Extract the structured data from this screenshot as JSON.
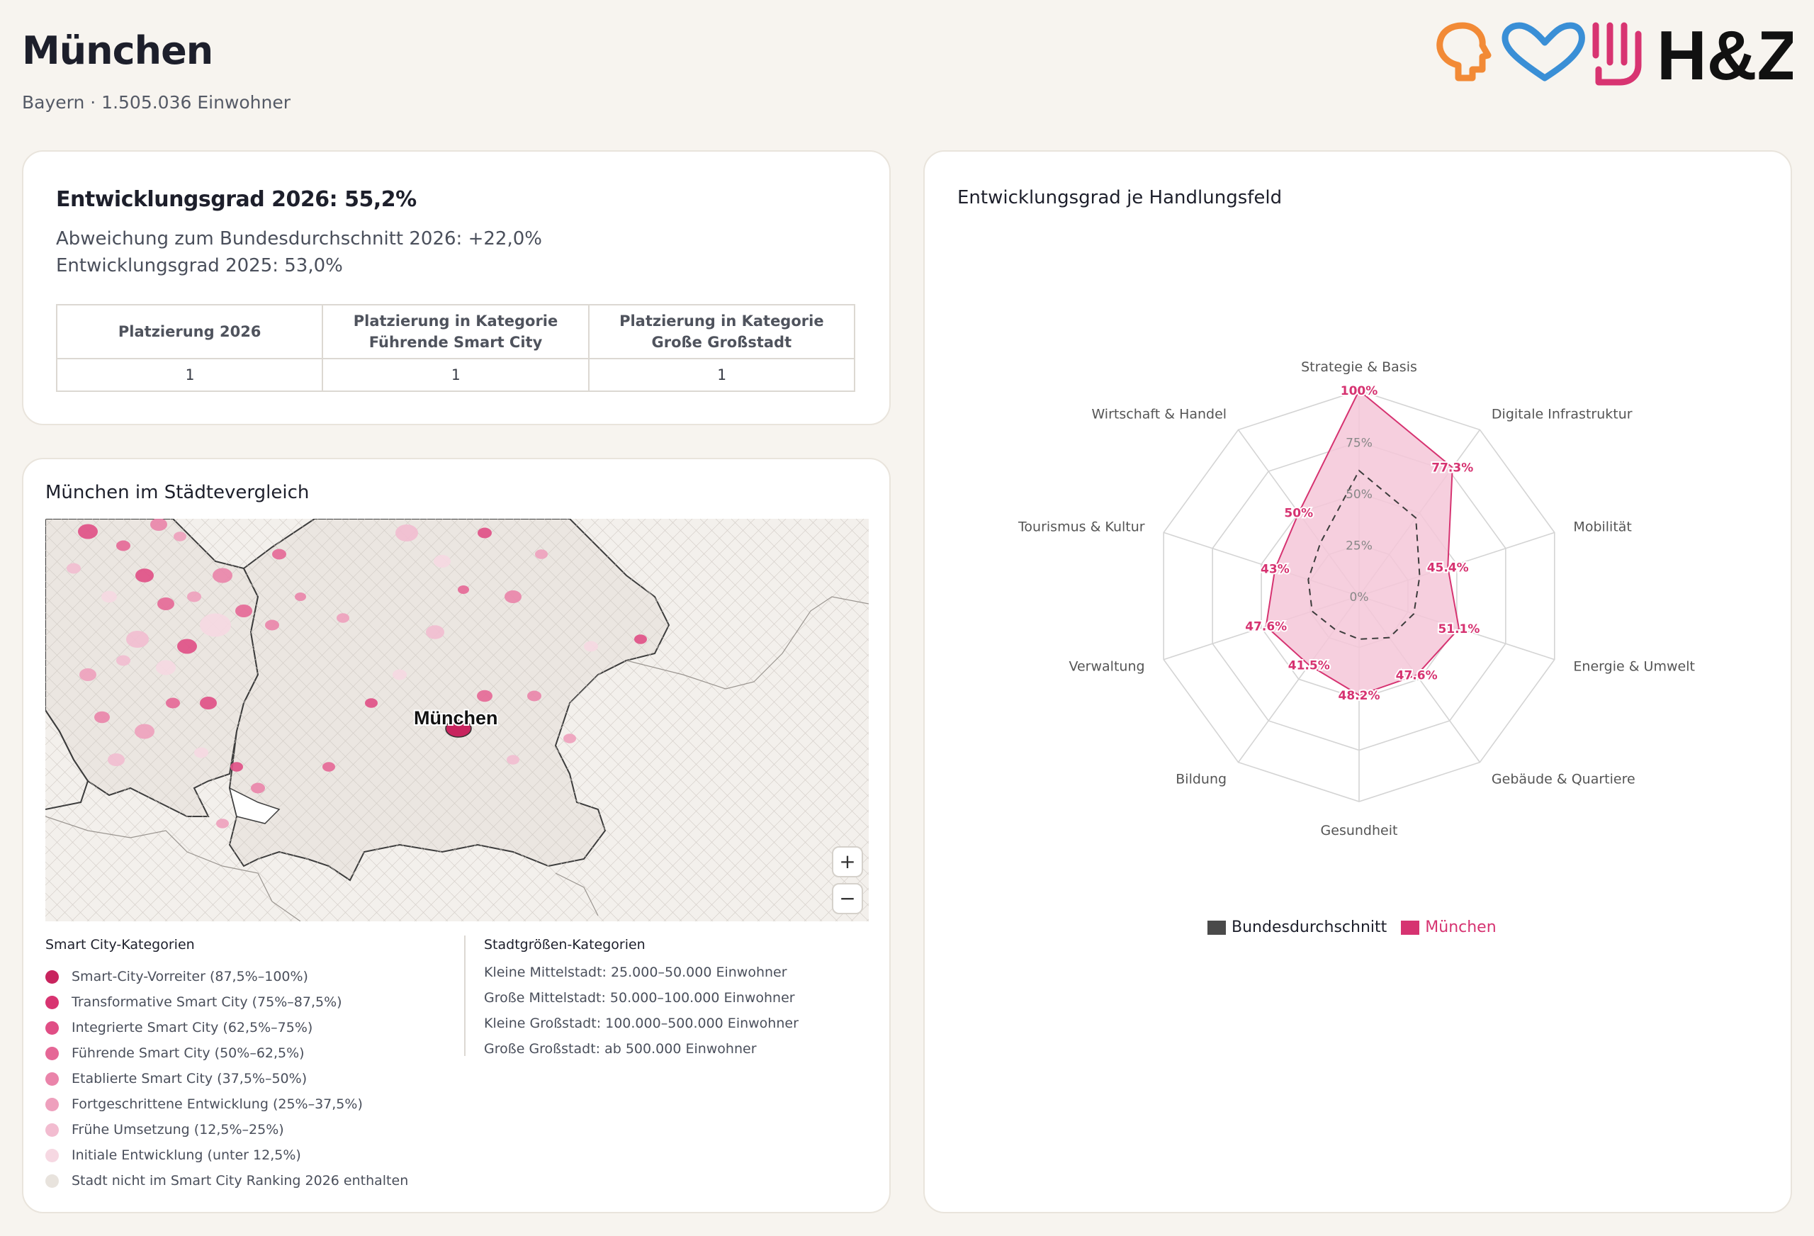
{
  "header": {
    "city": "München",
    "subtitle": "Bayern · 1.505.036 Einwohner",
    "logo_text": "H&Z"
  },
  "summary": {
    "grade": "Entwicklungsgrad 2026: 55,2%",
    "deviation": "Abweichung zum Bundesdurchschnitt 2026: +22,0%",
    "grade_prev": "Entwicklungsgrad 2025: 53,0%",
    "table": {
      "headers": [
        "Platzierung 2026",
        "Platzierung in Kategorie Führende Smart City",
        "Platzierung in Kategorie Große Großstadt"
      ],
      "values": [
        "1",
        "1",
        "1"
      ]
    }
  },
  "map": {
    "title": "München im Städtevergleich",
    "city_label": "München",
    "zoom_in": "+",
    "zoom_out": "−",
    "legend_categories_title": "Smart City-Kategorien",
    "legend_categories": [
      {
        "label": "Smart-City-Vorreiter (87,5%–100%)",
        "color": "#c8245e"
      },
      {
        "label": "Transformative Smart City (75%–87,5%)",
        "color": "#d83471"
      },
      {
        "label": "Integrierte Smart City (62,5%–75%)",
        "color": "#e04e85"
      },
      {
        "label": "Führende Smart City (50%–62,5%)",
        "color": "#e56796"
      },
      {
        "label": "Etablierte Smart City (37,5%–50%)",
        "color": "#ea84aa"
      },
      {
        "label": "Fortgeschrittene Entwicklung (25%–37,5%)",
        "color": "#eea0bd"
      },
      {
        "label": "Frühe Umsetzung (12,5%–25%)",
        "color": "#f2bcd0"
      },
      {
        "label": "Initiale Entwicklung (unter 12,5%)",
        "color": "#f6d8e2"
      },
      {
        "label": "Stadt nicht im Smart City Ranking 2026 enthalten",
        "color": "#e8e3dd"
      }
    ],
    "legend_size_title": "Stadtgrößen-Kategorien",
    "legend_sizes": [
      "Kleine Mittelstadt: 25.000–50.000 Einwohner",
      "Große Mittelstadt: 50.000–100.000 Einwohner",
      "Kleine Großstadt: 100.000–500.000 Einwohner",
      "Große Großstadt: ab 500.000 Einwohner"
    ]
  },
  "radar": {
    "title": "Entwicklungsgrad je Handlungsfeld",
    "ring_labels": [
      "0%",
      "25%",
      "50%",
      "75%",
      "100%"
    ],
    "legend": [
      {
        "label": "Bundesdurchschnitt",
        "color": "#4a4a4a"
      },
      {
        "label": "München",
        "color": "#d63371"
      }
    ],
    "colors": {
      "city": "#d63371",
      "city_fill": "#f4c7d8",
      "avg": "#3c3c3c",
      "grid": "#d4d4d4"
    }
  },
  "chart_data": {
    "type": "radar",
    "categories": [
      "Strategie & Basis",
      "Digitale Infrastruktur",
      "Mobilität",
      "Energie & Umwelt",
      "Gebäude & Quartiere",
      "Gesundheit",
      "Bildung",
      "Verwaltung",
      "Tourismus & Kultur",
      "Wirtschaft & Handel"
    ],
    "series": [
      {
        "name": "München",
        "values": [
          100,
          77.3,
          45.4,
          51.1,
          47.6,
          48.2,
          41.5,
          47.6,
          43,
          50
        ],
        "labels": [
          "100%",
          "77.3%",
          "45.4%",
          "51.1%",
          "47.6%",
          "48.2%",
          "41.5%",
          "47.6%",
          "43%",
          "50%"
        ]
      },
      {
        "name": "Bundesdurchschnitt",
        "values": [
          61,
          47,
          31,
          28,
          25,
          21,
          20,
          24,
          26,
          32
        ]
      }
    ],
    "range": [
      0,
      100
    ]
  }
}
